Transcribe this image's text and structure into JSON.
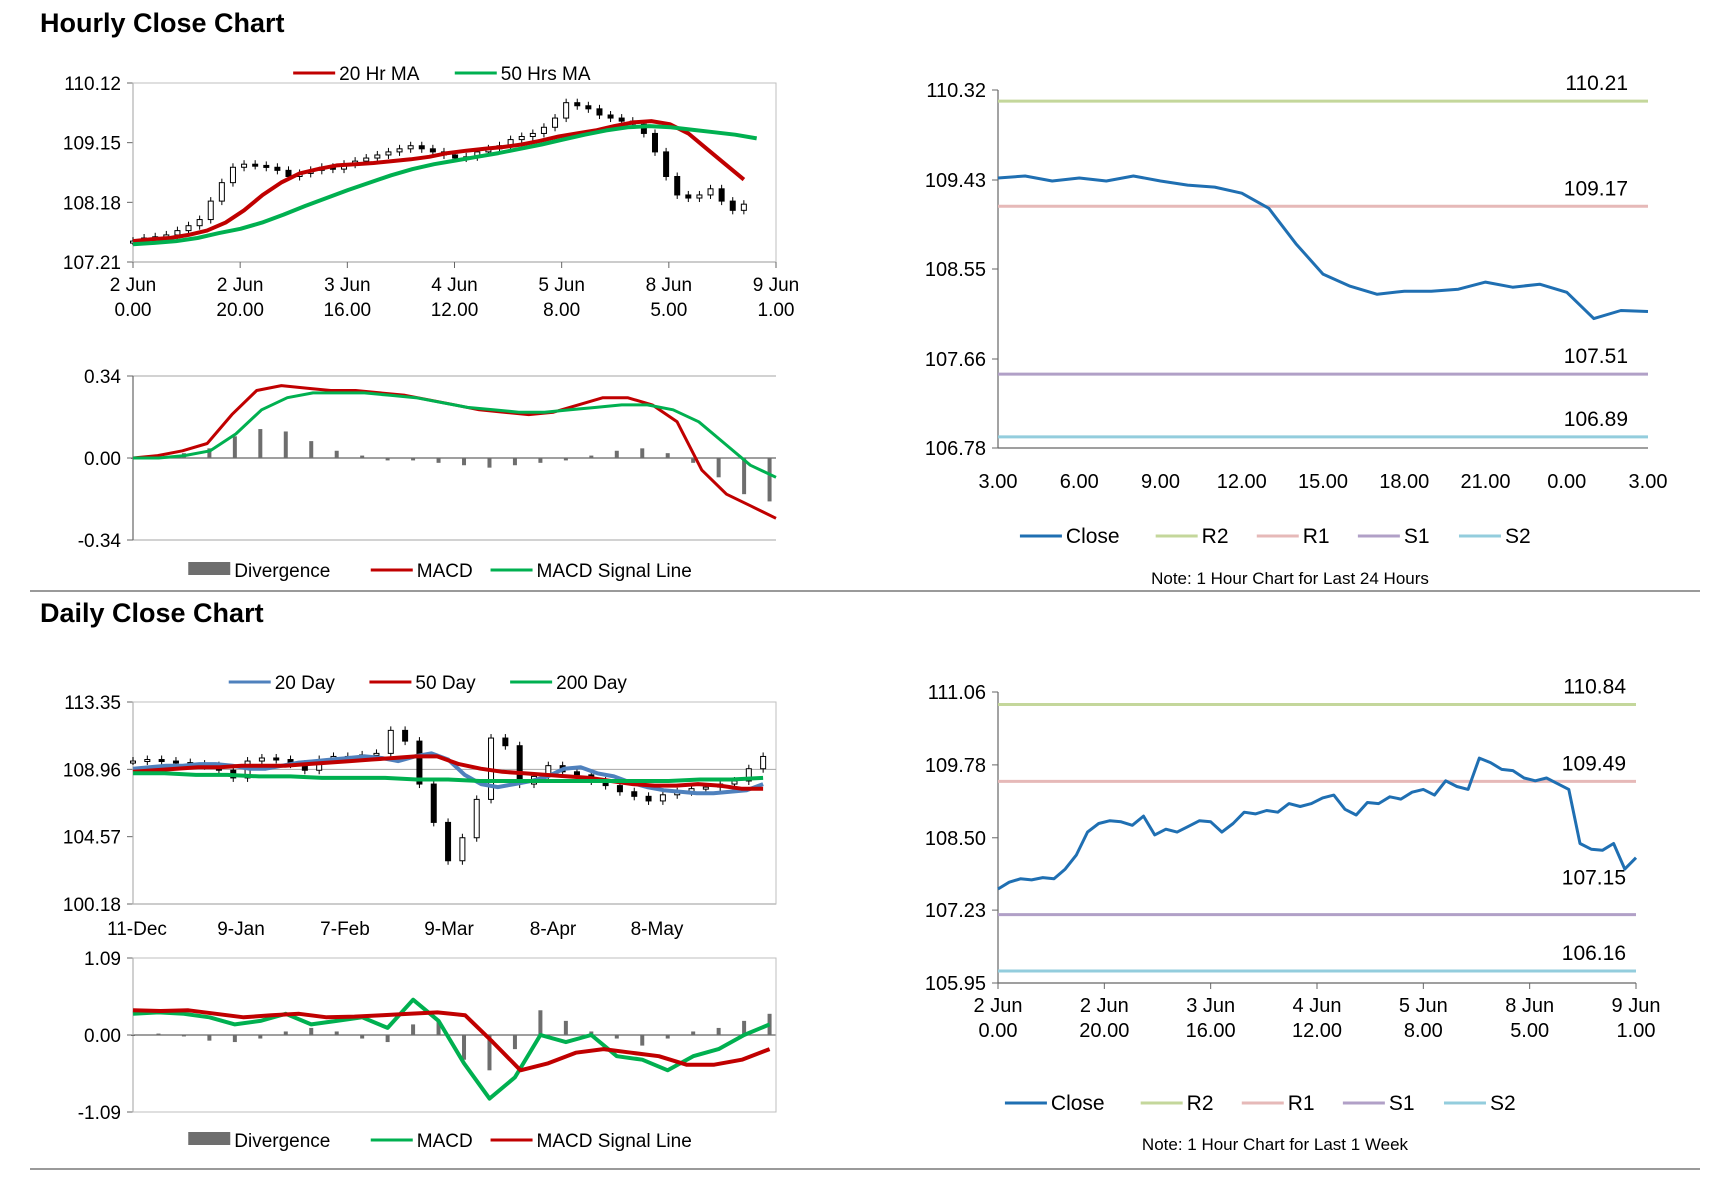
{
  "sections": {
    "hourly_title": "Hourly Close Chart",
    "daily_title": "Daily Close Chart"
  },
  "chart_data": [
    {
      "id": "hourly_price",
      "type": "line",
      "ylim": [
        107.21,
        110.12
      ],
      "yticks": [
        "110.12",
        "109.15",
        "108.18",
        "107.21"
      ],
      "xticks": [
        [
          "2 Jun",
          "0.00"
        ],
        [
          "2 Jun",
          "20.00"
        ],
        [
          "3 Jun",
          "16.00"
        ],
        [
          "4 Jun",
          "12.00"
        ],
        [
          "5 Jun",
          "8.00"
        ],
        [
          "8 Jun",
          "5.00"
        ],
        [
          "9 Jun",
          "1.00"
        ]
      ],
      "legend": [
        "20 Hr MA",
        "50 Hrs MA"
      ],
      "series": [
        {
          "name": "Close",
          "values": [
            107.55,
            107.6,
            107.62,
            107.65,
            107.72,
            107.8,
            107.9,
            108.2,
            108.5,
            108.75,
            108.8,
            108.78,
            108.75,
            108.7,
            108.6,
            108.65,
            108.7,
            108.75,
            108.72,
            108.8,
            108.85,
            108.9,
            108.95,
            109.0,
            109.05,
            109.1,
            109.05,
            109.0,
            108.95,
            108.9,
            108.92,
            109.0,
            109.05,
            109.1,
            109.2,
            109.25,
            109.3,
            109.4,
            109.55,
            109.8,
            109.75,
            109.7,
            109.6,
            109.55,
            109.5,
            109.45,
            109.3,
            109.0,
            108.6,
            108.3,
            108.25,
            108.3,
            108.4,
            108.2,
            108.05,
            108.15
          ]
        },
        {
          "name": "20 Hr MA",
          "color": "#c00000",
          "values": [
            107.55,
            107.58,
            107.6,
            107.65,
            107.72,
            107.85,
            108.05,
            108.3,
            108.5,
            108.65,
            108.72,
            108.78,
            108.8,
            108.82,
            108.85,
            108.88,
            108.92,
            108.98,
            109.02,
            109.05,
            109.08,
            109.12,
            109.18,
            109.25,
            109.3,
            109.35,
            109.42,
            109.48,
            109.5,
            109.45,
            109.3,
            109.05,
            108.8,
            108.55
          ]
        },
        {
          "name": "50 Hrs MA",
          "color": "#00b050",
          "values": [
            107.5,
            107.52,
            107.55,
            107.6,
            107.68,
            107.75,
            107.85,
            107.98,
            108.12,
            108.25,
            108.38,
            108.5,
            108.62,
            108.72,
            108.8,
            108.86,
            108.92,
            108.98,
            109.05,
            109.12,
            109.2,
            109.28,
            109.35,
            109.4,
            109.42,
            109.4,
            109.36,
            109.32,
            109.28,
            109.22
          ]
        }
      ]
    },
    {
      "id": "hourly_macd",
      "type": "line",
      "ylim": [
        -0.34,
        0.34
      ],
      "yticks": [
        "0.34",
        "0.00",
        "-0.34"
      ],
      "legend": [
        "Divergence",
        "MACD",
        "MACD Signal Line"
      ],
      "series": [
        {
          "name": "MACD",
          "color": "#c00000",
          "values": [
            0.0,
            0.01,
            0.03,
            0.06,
            0.18,
            0.28,
            0.3,
            0.29,
            0.28,
            0.28,
            0.27,
            0.26,
            0.24,
            0.22,
            0.2,
            0.19,
            0.18,
            0.19,
            0.22,
            0.25,
            0.25,
            0.22,
            0.15,
            -0.05,
            -0.15,
            -0.2,
            -0.25
          ]
        },
        {
          "name": "MACD Signal Line",
          "color": "#00b050",
          "values": [
            0.0,
            0.0,
            0.01,
            0.03,
            0.1,
            0.2,
            0.25,
            0.27,
            0.27,
            0.27,
            0.26,
            0.25,
            0.23,
            0.21,
            0.2,
            0.19,
            0.19,
            0.2,
            0.21,
            0.22,
            0.22,
            0.2,
            0.15,
            0.06,
            -0.03,
            -0.08
          ]
        },
        {
          "name": "Divergence",
          "color": "#6e6e6e",
          "values": [
            0.0,
            0.01,
            0.02,
            0.04,
            0.09,
            0.12,
            0.11,
            0.07,
            0.03,
            0.01,
            -0.01,
            -0.01,
            -0.02,
            -0.03,
            -0.04,
            -0.03,
            -0.02,
            -0.01,
            0.01,
            0.03,
            0.04,
            0.02,
            -0.02,
            -0.08,
            -0.15,
            -0.18
          ]
        }
      ]
    },
    {
      "id": "hourly_24h",
      "type": "line",
      "ylim": [
        106.78,
        110.32
      ],
      "yticks": [
        "110.32",
        "109.43",
        "108.55",
        "107.66",
        "106.78"
      ],
      "xticks": [
        "3.00",
        "6.00",
        "9.00",
        "12.00",
        "15.00",
        "18.00",
        "21.00",
        "0.00",
        "3.00"
      ],
      "levels": {
        "R2": 110.21,
        "R1": 109.17,
        "S1": 107.51,
        "S2": 106.89
      },
      "level_labels": {
        "R2": "110.21",
        "R1": "109.17",
        "S1": "107.51",
        "S2": "106.89"
      },
      "legend": [
        "Close",
        "R2",
        "R1",
        "S1",
        "S2"
      ],
      "series": [
        {
          "name": "Close",
          "color": "#1f6fb2",
          "values": [
            109.45,
            109.47,
            109.42,
            109.45,
            109.42,
            109.47,
            109.42,
            109.38,
            109.36,
            109.3,
            109.15,
            108.8,
            108.5,
            108.38,
            108.3,
            108.33,
            108.33,
            108.35,
            108.42,
            108.37,
            108.4,
            108.32,
            108.06,
            108.14,
            108.13
          ]
        },
        {
          "name": "R2",
          "color": "#c4d79b"
        },
        {
          "name": "R1",
          "color": "#e6b9b8"
        },
        {
          "name": "S1",
          "color": "#b1a0c7"
        },
        {
          "name": "S2",
          "color": "#93cddd"
        }
      ],
      "note": "Note: 1 Hour Chart for Last 24 Hours"
    },
    {
      "id": "daily_price",
      "type": "line",
      "ylim": [
        100.18,
        113.35
      ],
      "yticks": [
        "113.35",
        "108.96",
        "104.57",
        "100.18"
      ],
      "xticks": [
        "11-Dec",
        "9-Jan",
        "7-Feb",
        "9-Mar",
        "8-Apr",
        "8-May"
      ],
      "legend": [
        "20 Day",
        "50 Day",
        "200 Day"
      ],
      "series": [
        {
          "name": "Close",
          "values": [
            109.5,
            109.6,
            109.5,
            109.4,
            109.3,
            109.2,
            108.9,
            108.4,
            109.5,
            109.7,
            109.6,
            109.3,
            108.9,
            109.6,
            109.8,
            109.7,
            109.9,
            110.0,
            111.5,
            110.8,
            108.0,
            105.5,
            103.0,
            104.5,
            107.0,
            111.0,
            110.5,
            108.0,
            108.5,
            109.2,
            108.8,
            108.6,
            108.2,
            107.9,
            107.5,
            107.2,
            106.9,
            107.3,
            107.5,
            107.7,
            107.8,
            108.0,
            108.2,
            109.0,
            109.8
          ]
        },
        {
          "name": "20 Day",
          "color": "#4f81bd",
          "values": [
            109.0,
            109.1,
            109.2,
            109.2,
            109.3,
            109.3,
            109.2,
            109.0,
            109.0,
            109.2,
            109.4,
            109.5,
            109.6,
            109.7,
            109.8,
            109.7,
            109.5,
            109.8,
            110.0,
            109.6,
            108.6,
            108.0,
            107.8,
            108.0,
            108.2,
            108.5,
            109.0,
            109.1,
            108.7,
            108.5,
            108.1,
            107.8,
            107.6,
            107.5,
            107.4,
            107.4,
            107.5,
            107.6,
            108.0
          ]
        },
        {
          "name": "50 Day",
          "color": "#c00000",
          "values": [
            108.8,
            108.9,
            109.0,
            109.1,
            109.1,
            109.2,
            109.2,
            109.2,
            109.3,
            109.4,
            109.5,
            109.6,
            109.7,
            109.8,
            109.8,
            109.3,
            109.0,
            108.8,
            108.7,
            108.6,
            108.5,
            108.4,
            108.2,
            108.0,
            107.9,
            107.9,
            108.0,
            107.9,
            107.7,
            107.7
          ]
        },
        {
          "name": "200 Day",
          "color": "#00b050",
          "values": [
            108.7,
            108.7,
            108.6,
            108.6,
            108.5,
            108.5,
            108.4,
            108.4,
            108.4,
            108.3,
            108.3,
            108.2,
            108.2,
            108.2,
            108.2,
            108.2,
            108.2,
            108.2,
            108.3,
            108.3,
            108.4
          ]
        }
      ]
    },
    {
      "id": "daily_macd",
      "type": "line",
      "ylim": [
        -1.09,
        1.09
      ],
      "yticks": [
        "1.09",
        "0.00",
        "-1.09"
      ],
      "legend": [
        "Divergence",
        "MACD",
        "MACD Signal Line"
      ],
      "series": [
        {
          "name": "MACD",
          "color": "#00b050",
          "values": [
            0.3,
            0.32,
            0.3,
            0.25,
            0.15,
            0.2,
            0.3,
            0.15,
            0.2,
            0.25,
            0.1,
            0.5,
            0.2,
            -0.4,
            -0.9,
            -0.6,
            0.0,
            -0.1,
            0.0,
            -0.3,
            -0.35,
            -0.5,
            -0.3,
            -0.2,
            0.0,
            0.15
          ]
        },
        {
          "name": "MACD Signal Line",
          "color": "#c00000",
          "values": [
            0.35,
            0.34,
            0.35,
            0.3,
            0.25,
            0.28,
            0.3,
            0.25,
            0.26,
            0.28,
            0.3,
            0.32,
            0.28,
            -0.1,
            -0.5,
            -0.4,
            -0.25,
            -0.2,
            -0.25,
            -0.3,
            -0.42,
            -0.42,
            -0.35,
            -0.2
          ]
        },
        {
          "name": "Divergence",
          "color": "#6e6e6e",
          "values": [
            0.0,
            0.02,
            -0.02,
            -0.08,
            -0.1,
            -0.05,
            0.05,
            0.1,
            0.05,
            -0.05,
            -0.1,
            0.15,
            0.2,
            -0.35,
            -0.5,
            -0.2,
            0.35,
            0.2,
            0.05,
            -0.05,
            -0.15,
            -0.05,
            0.05,
            0.1,
            0.2,
            0.3
          ]
        }
      ]
    },
    {
      "id": "daily_1w",
      "type": "line",
      "ylim": [
        105.95,
        111.06
      ],
      "yticks": [
        "111.06",
        "109.78",
        "108.50",
        "107.23",
        "105.95"
      ],
      "xticks": [
        [
          "2 Jun",
          "0.00"
        ],
        [
          "2 Jun",
          "20.00"
        ],
        [
          "3 Jun",
          "16.00"
        ],
        [
          "4 Jun",
          "12.00"
        ],
        [
          "5 Jun",
          "8.00"
        ],
        [
          "8 Jun",
          "5.00"
        ],
        [
          "9 Jun",
          "1.00"
        ]
      ],
      "levels": {
        "R2": 110.84,
        "R1": 109.49,
        "S1": 107.15,
        "S2": 106.16
      },
      "level_labels": {
        "R2": "110.84",
        "R1": "109.49",
        "S1": "107.15",
        "S2": "106.16"
      },
      "legend": [
        "Close",
        "R2",
        "R1",
        "S1",
        "S2"
      ],
      "series": [
        {
          "name": "Close",
          "color": "#1f6fb2",
          "values": [
            107.6,
            107.72,
            107.78,
            107.76,
            107.8,
            107.78,
            107.95,
            108.2,
            108.6,
            108.75,
            108.8,
            108.78,
            108.72,
            108.88,
            108.55,
            108.65,
            108.6,
            108.7,
            108.8,
            108.78,
            108.6,
            108.75,
            108.95,
            108.92,
            108.98,
            108.95,
            109.1,
            109.05,
            109.1,
            109.2,
            109.25,
            109.0,
            108.9,
            109.12,
            109.1,
            109.22,
            109.18,
            109.3,
            109.35,
            109.25,
            109.5,
            109.4,
            109.35,
            109.9,
            109.82,
            109.7,
            109.68,
            109.55,
            109.5,
            109.55,
            109.45,
            109.35,
            108.4,
            108.3,
            108.28,
            108.4,
            107.95,
            108.15
          ]
        },
        {
          "name": "R2",
          "color": "#c4d79b"
        },
        {
          "name": "R1",
          "color": "#e6b9b8"
        },
        {
          "name": "S1",
          "color": "#b1a0c7"
        },
        {
          "name": "S2",
          "color": "#93cddd"
        }
      ],
      "note": "Note: 1 Hour Chart for Last 1 Week"
    }
  ]
}
